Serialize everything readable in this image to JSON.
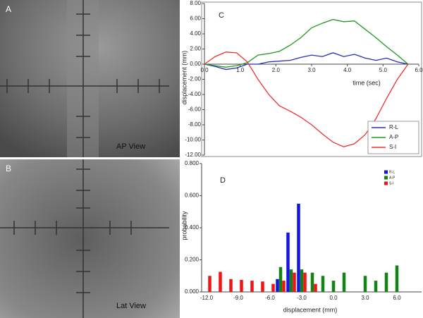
{
  "panels": [
    {
      "label": "A",
      "caption": "AP View"
    },
    {
      "label": "B",
      "caption": "Lat View"
    }
  ],
  "chart_data": [
    {
      "type": "line",
      "label": "C",
      "ylabel": "displacement (mm)",
      "xlabel": "time (sec)",
      "x": [
        0,
        0.3,
        0.6,
        0.9,
        1.2,
        1.5,
        1.8,
        2.1,
        2.4,
        2.7,
        3.0,
        3.3,
        3.6,
        3.9,
        4.2,
        4.5,
        4.8,
        5.1,
        5.4,
        5.7
      ],
      "xlim": [
        0,
        6
      ],
      "xticks": [
        {
          "value": 0,
          "label": "0.0"
        },
        {
          "value": 1,
          "label": "1.0"
        },
        {
          "value": 2,
          "label": "2.0"
        },
        {
          "value": 3,
          "label": "3.0"
        },
        {
          "value": 4,
          "label": "4.0"
        },
        {
          "value": 5,
          "label": "5.0"
        },
        {
          "value": 6,
          "label": "6.0"
        }
      ],
      "ylim": [
        -12,
        8
      ],
      "yticks": [
        {
          "value": 8,
          "label": "8.00"
        },
        {
          "value": 6,
          "label": "6.00"
        },
        {
          "value": 4,
          "label": "4.00"
        },
        {
          "value": 2,
          "label": "2.00"
        },
        {
          "value": 0,
          "label": "0.00"
        },
        {
          "value": -2,
          "label": "-2.00"
        },
        {
          "value": -4,
          "label": "-4.00"
        },
        {
          "value": -6,
          "label": "-6.00"
        },
        {
          "value": -8,
          "label": "-8.00"
        },
        {
          "value": -10,
          "label": "-10.00"
        },
        {
          "value": -12,
          "label": "-12.00"
        }
      ],
      "legend": "lower right",
      "series": [
        {
          "name": "R-L",
          "color": "#2b2bb8",
          "values": [
            0,
            -0.3,
            -0.7,
            -0.5,
            0,
            0,
            0.3,
            0.4,
            0.5,
            0.9,
            1.2,
            1.0,
            1.5,
            1.0,
            1.3,
            0.8,
            0.5,
            0.8,
            0.3,
            0
          ]
        },
        {
          "name": "A-P",
          "color": "#1f9a1f",
          "values": [
            0,
            -0.2,
            -0.4,
            -0.2,
            0.2,
            1.2,
            1.4,
            1.7,
            2.5,
            3.5,
            4.8,
            5.4,
            5.9,
            5.6,
            5.7,
            4.6,
            3.5,
            2.3,
            1.2,
            0
          ]
        },
        {
          "name": "S-I",
          "color": "#f03030",
          "values": [
            0,
            1.0,
            1.6,
            1.5,
            0.3,
            -2.0,
            -4.0,
            -5.5,
            -6.2,
            -7.0,
            -8.0,
            -9.2,
            -10.3,
            -10.9,
            -10.5,
            -9.3,
            -7.2,
            -4.5,
            -2.0,
            0
          ]
        }
      ]
    },
    {
      "type": "bar",
      "label": "D",
      "ylabel": "probability",
      "xlabel": "displacement (mm)",
      "categories": [
        "-12.0",
        null,
        null,
        "-9.0",
        null,
        null,
        "-6.0",
        null,
        null,
        "-3.0",
        null,
        null,
        "0.0",
        null,
        null,
        "3.0",
        null,
        null,
        "6.0"
      ],
      "ylim": [
        0,
        0.8
      ],
      "yticks": [
        {
          "value": 0,
          "label": "0.000"
        },
        {
          "value": 0.2,
          "label": "0.200"
        },
        {
          "value": 0.4,
          "label": "0.400"
        },
        {
          "value": 0.6,
          "label": "0.600"
        },
        {
          "value": 0.8,
          "label": "0.800"
        }
      ],
      "legend": "upper right",
      "series": [
        {
          "name": "R-L",
          "color": "#1414e6",
          "values": [
            null,
            null,
            null,
            null,
            null,
            null,
            null,
            0.08,
            0.37,
            0.55,
            null,
            null,
            null,
            null,
            null,
            null,
            null,
            null,
            null
          ]
        },
        {
          "name": "A-P",
          "color": "#148214",
          "values": [
            null,
            null,
            null,
            null,
            null,
            null,
            null,
            0.155,
            0.14,
            0.14,
            0.12,
            0.1,
            0.07,
            0.12,
            null,
            0.1,
            0.07,
            0.12,
            0.165
          ]
        },
        {
          "name": "S-I",
          "color": "#f01414",
          "values": [
            0.1,
            0.125,
            0.08,
            0.075,
            0.07,
            0.065,
            0.05,
            0.07,
            0.12,
            0.12,
            0.05,
            null,
            null,
            null,
            null,
            null,
            null,
            null,
            null
          ]
        }
      ]
    }
  ]
}
